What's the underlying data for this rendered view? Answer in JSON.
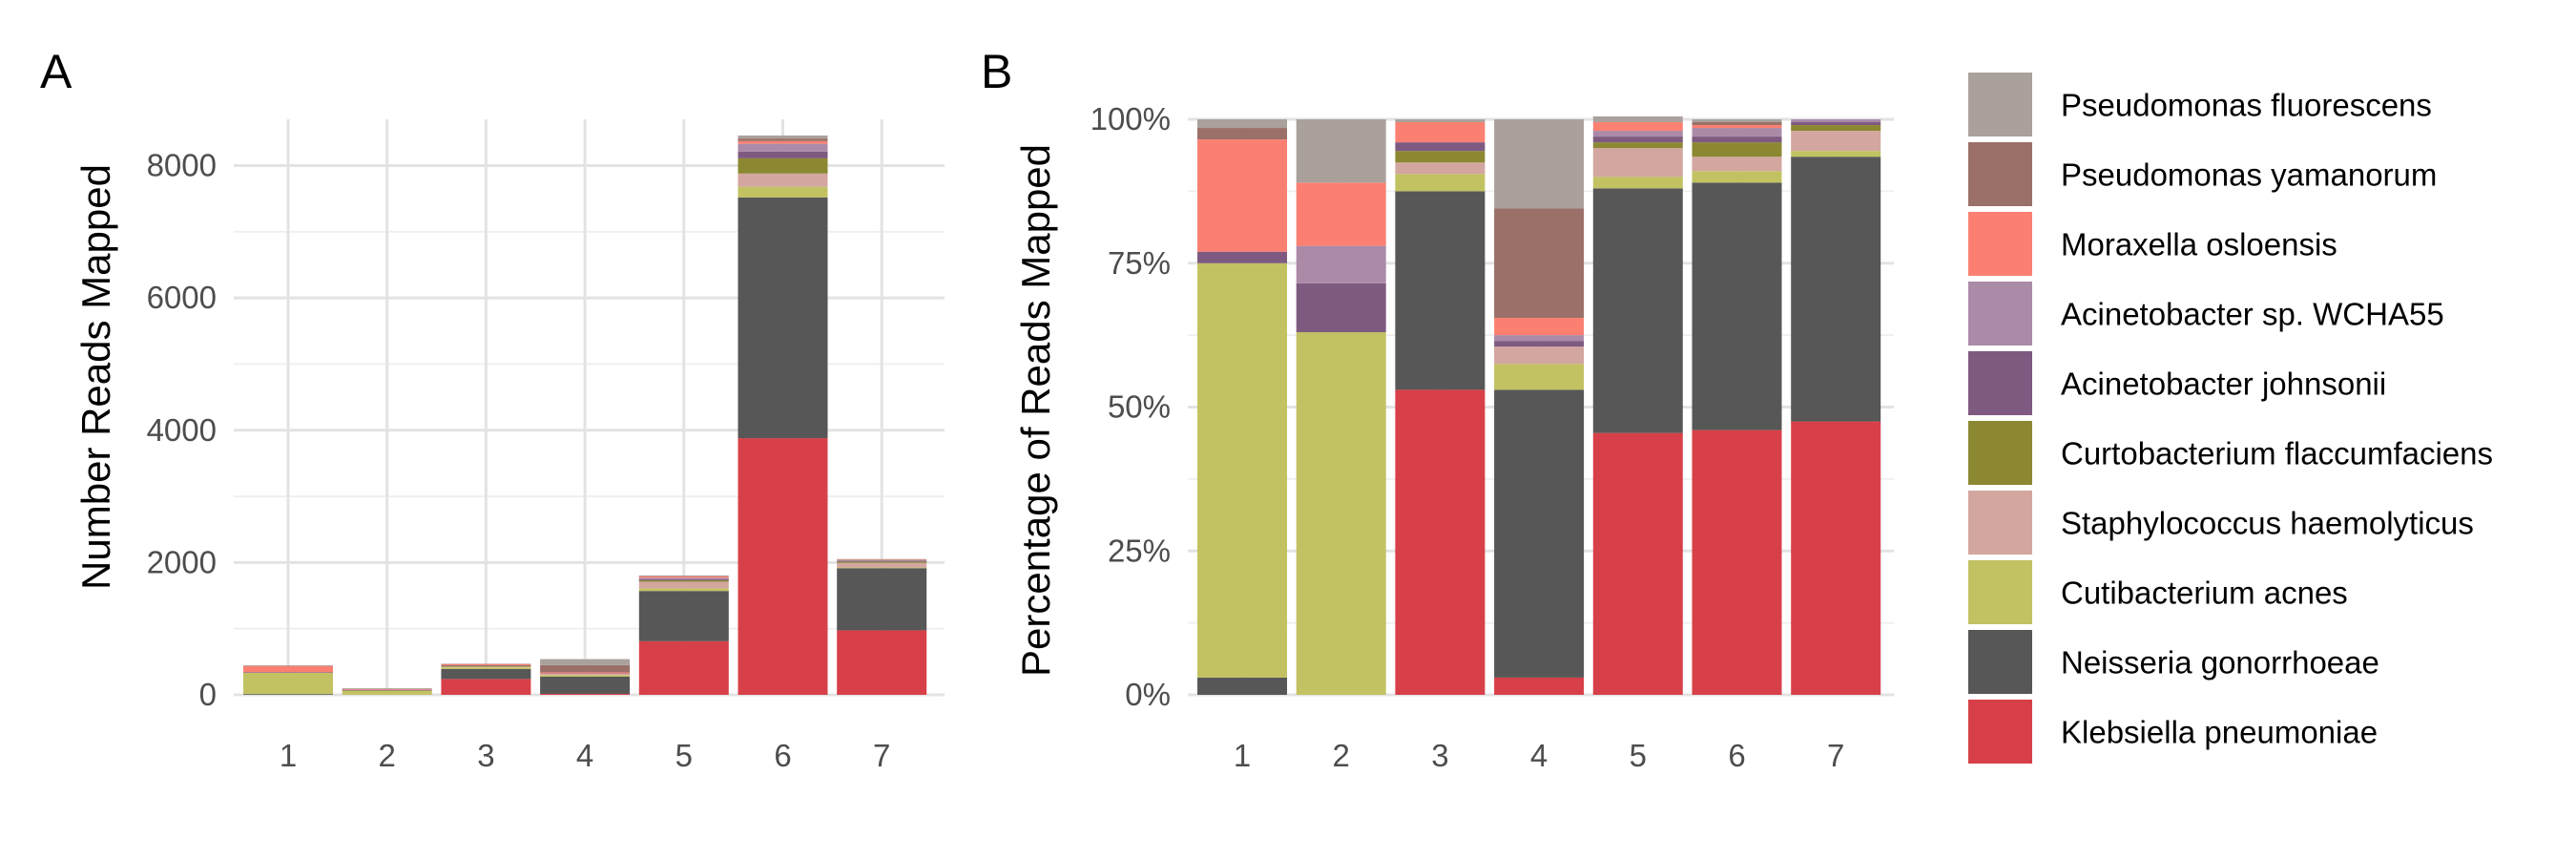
{
  "colors": {
    "Pseudomonas fluorescens": "#aaa19c",
    "Pseudomonas yamanorum": "#9a7069",
    "Moraxella osloensis": "#fb8072",
    "Acinetobacter sp. WCHA55": "#ab8aa8",
    "Acinetobacter johnsonii": "#7e5a80",
    "Curtobacterium flaccumfaciens": "#8c8832",
    "Staphylococcus haemolyticus": "#d3a69f",
    "Cutibacterium acnes": "#c2c262",
    "Neisseria gonorrhoeae": "#575757",
    "Klebsiella pneumoniae": "#d84049"
  },
  "legend": {
    "entries": [
      "Pseudomonas fluorescens",
      "Pseudomonas yamanorum",
      "Moraxella osloensis",
      "Acinetobacter sp. WCHA55",
      "Acinetobacter johnsonii",
      "Curtobacterium flaccumfaciens",
      "Staphylococcus haemolyticus",
      "Cutibacterium acnes",
      "Neisseria gonorrhoeae",
      "Klebsiella pneumoniae"
    ]
  },
  "chart_data": [
    {
      "type": "bar",
      "stacked": true,
      "panel_label": "A",
      "title": "",
      "xlabel": "",
      "ylabel": "Number Reads Mapped",
      "categories": [
        "1",
        "2",
        "3",
        "4",
        "5",
        "6",
        "7"
      ],
      "ylim": [
        0,
        8700
      ],
      "yticks": [
        0,
        2000,
        4000,
        6000,
        8000
      ],
      "ytick_labels": [
        "0",
        "2000",
        "4000",
        "6000",
        "8000"
      ],
      "grid": true,
      "series": [
        {
          "name": "Klebsiella pneumoniae",
          "values": [
            0,
            0,
            240,
            15,
            810,
            3880,
            975
          ]
        },
        {
          "name": "Neisseria gonorrhoeae",
          "values": [
            12,
            0,
            150,
            260,
            760,
            3640,
            940
          ]
        },
        {
          "name": "Cutibacterium acnes",
          "values": [
            320,
            65,
            25,
            25,
            40,
            160,
            10
          ]
        },
        {
          "name": "Staphylococcus haemolyticus",
          "values": [
            0,
            0,
            12,
            20,
            100,
            200,
            70
          ]
        },
        {
          "name": "Curtobacterium flaccumfaciens",
          "values": [
            0,
            0,
            12,
            0,
            20,
            230,
            20
          ]
        },
        {
          "name": "Acinetobacter johnsonii",
          "values": [
            10,
            8,
            8,
            5,
            20,
            100,
            10
          ]
        },
        {
          "name": "Acinetobacter sp. WCHA55",
          "values": [
            0,
            6,
            0,
            0,
            20,
            120,
            10
          ]
        },
        {
          "name": "Moraxella osloensis",
          "values": [
            90,
            11,
            18,
            15,
            20,
            40,
            8
          ]
        },
        {
          "name": "Pseudomonas yamanorum",
          "values": [
            10,
            0,
            5,
            110,
            5,
            40,
            5
          ]
        },
        {
          "name": "Pseudomonas fluorescens",
          "values": [
            0,
            11,
            0,
            90,
            10,
            45,
            5
          ]
        }
      ]
    },
    {
      "type": "bar",
      "stacked": true,
      "percent": true,
      "panel_label": "B",
      "title": "",
      "xlabel": "",
      "ylabel": "Percentage of Reads Mapped",
      "categories": [
        "1",
        "2",
        "3",
        "4",
        "5",
        "6",
        "7"
      ],
      "ylim": [
        0,
        100
      ],
      "yticks": [
        0,
        25,
        50,
        75,
        100
      ],
      "ytick_labels": [
        "0%",
        "25%",
        "50%",
        "75%",
        "100%"
      ],
      "grid": true,
      "series": [
        {
          "name": "Klebsiella pneumoniae",
          "values": [
            0,
            0,
            53,
            3,
            45.5,
            46,
            47.5
          ]
        },
        {
          "name": "Neisseria gonorrhoeae",
          "values": [
            3,
            0,
            34.5,
            50,
            42.5,
            43,
            46
          ]
        },
        {
          "name": "Cutibacterium acnes",
          "values": [
            72,
            63,
            3,
            4.5,
            2,
            2,
            1
          ]
        },
        {
          "name": "Staphylococcus haemolyticus",
          "values": [
            0,
            0,
            2,
            3,
            5,
            2.5,
            3.5
          ]
        },
        {
          "name": "Curtobacterium flaccumfaciens",
          "values": [
            0,
            0,
            2,
            0,
            1,
            2.5,
            1
          ]
        },
        {
          "name": "Acinetobacter johnsonii",
          "values": [
            2,
            8.5,
            1.5,
            1,
            1,
            1,
            0.5
          ]
        },
        {
          "name": "Acinetobacter sp. WCHA55",
          "values": [
            0,
            6.5,
            0,
            1,
            1,
            1.5,
            0.5
          ]
        },
        {
          "name": "Moraxella osloensis",
          "values": [
            19.5,
            11,
            3.5,
            3,
            1.5,
            0.5,
            0
          ]
        },
        {
          "name": "Pseudomonas yamanorum",
          "values": [
            2,
            0,
            0,
            19,
            0,
            0.5,
            0
          ]
        },
        {
          "name": "Pseudomonas fluorescens",
          "values": [
            1.5,
            11,
            0.5,
            15.5,
            1,
            0.5,
            0
          ]
        }
      ]
    }
  ]
}
